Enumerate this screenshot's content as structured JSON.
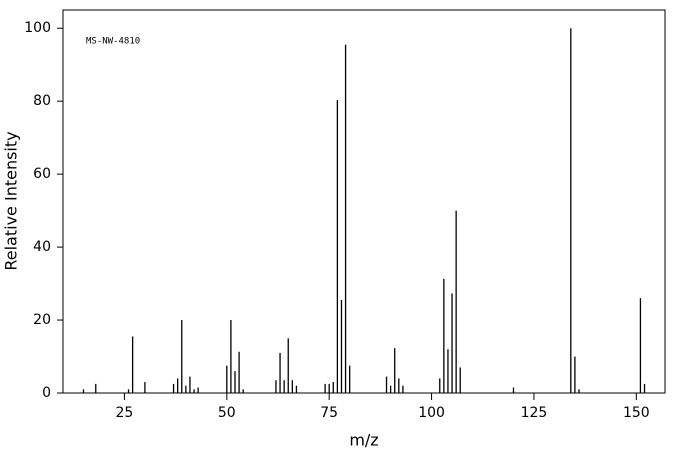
{
  "chart_data": {
    "type": "bar",
    "annotation": "MS-NW-4810",
    "x_label": "m/z",
    "y_label": "Relative Intensity",
    "x": [
      15,
      18,
      26,
      27,
      30,
      37,
      38,
      39,
      40,
      41,
      42,
      43,
      50,
      51,
      52,
      53,
      54,
      62,
      63,
      64,
      65,
      66,
      67,
      74,
      75,
      76,
      77,
      78,
      79,
      80,
      89,
      90,
      91,
      92,
      93,
      102,
      103,
      104,
      105,
      106,
      107,
      120,
      134,
      135,
      136,
      151,
      152
    ],
    "values": [
      1,
      2.5,
      1,
      15.5,
      3,
      2.5,
      4,
      20,
      2,
      4.5,
      1,
      1.5,
      7.5,
      20,
      6,
      11.3,
      1,
      3.5,
      11,
      3.5,
      15,
      3.5,
      2,
      2.5,
      2.5,
      3,
      80.3,
      25.5,
      95.5,
      7.5,
      4.5,
      2,
      12.3,
      4,
      2,
      4,
      31.3,
      12,
      27.3,
      50,
      7,
      1.5,
      100,
      10,
      1,
      26,
      2.5
    ],
    "color": "#000000",
    "xlim": [
      10,
      157
    ],
    "xticks": [
      25,
      50,
      75,
      100,
      125,
      150
    ],
    "ylim": [
      0,
      105
    ],
    "yticks": [
      0,
      20,
      40,
      60,
      80,
      100
    ]
  }
}
